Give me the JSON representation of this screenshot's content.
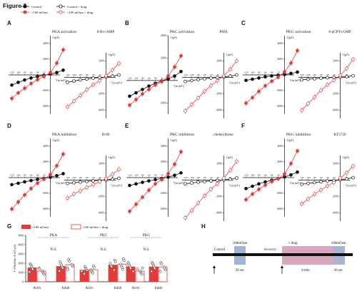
{
  "figure_title": "Figure 2",
  "legend_top": {
    "control": "Control",
    "control_drug": "Control + drug",
    "high": "+100 mOsm",
    "high_drug": "+100 mOsm + drug"
  },
  "colors": {
    "control": "#111111",
    "high": "#e23b3b",
    "bar_fill": "#e23b3b",
    "shade_blue": "#9fb6d6",
    "shade_pink": "#d9a7bd"
  },
  "icon_names": {
    "up_arrow": "up-arrow-icon",
    "open_circle": "open-circle-marker",
    "filled_circle": "filled-circle-marker"
  },
  "panels": [
    {
      "letter": "A",
      "title": "PKA activation",
      "drug": "8-Br-cAMP",
      "right_shows_drug": false,
      "y_label": "I (pA)",
      "x_label": "Vm (mV)",
      "yticks_left": [
        "4000",
        "2000",
        "-2000",
        "-4000"
      ],
      "yticks_right": [
        "2000",
        "-2000",
        "-4000"
      ],
      "xticks": [
        "-120",
        "-100",
        "-80",
        "-60",
        "-40",
        "-20",
        "20"
      ]
    },
    {
      "letter": "B",
      "title": "PKC activation",
      "drug": "PMA",
      "right_shows_drug": true,
      "y_label": "I (pA)",
      "x_label": "Vm (mV)",
      "yticks_left": [
        "4000",
        "2000",
        "-2000"
      ],
      "yticks_right": [
        "2000",
        "-2000",
        "-4000"
      ],
      "xticks": [
        "-120",
        "-100",
        "-80",
        "-60",
        "-40",
        "-20",
        "20"
      ]
    },
    {
      "letter": "C",
      "title": "PKG activation",
      "drug": "8-pCPT-cGMP",
      "right_shows_drug": false,
      "y_label": "I (pA)",
      "x_label": "Vm (mV)",
      "yticks_left": [
        "4000",
        "2000",
        "-2000",
        "-4000"
      ],
      "yticks_right": [
        "2000",
        "-2000",
        "-4000"
      ],
      "xticks": [
        "-120",
        "-100",
        "-80",
        "-60",
        "-40",
        "-20",
        "20"
      ]
    },
    {
      "letter": "D",
      "title": "PKA inhibition",
      "drug": "H-89",
      "right_shows_drug": false,
      "y_label": "I (pA)",
      "x_label": "Vm (mV)",
      "yticks_left": [
        "4000",
        "2000",
        "-2000",
        "-4000"
      ],
      "yticks_right": [
        "2000",
        "-2000",
        "-4000"
      ],
      "xticks": [
        "-120",
        "-100",
        "-80",
        "-60",
        "-40",
        "-20",
        "20"
      ]
    },
    {
      "letter": "E",
      "title": "PKC inhibition",
      "drug": "chelerythrine",
      "right_shows_drug": false,
      "y_label": "I (pA)",
      "x_label": "Vm (mV)",
      "yticks_left": [
        "4000",
        "2000",
        "-2000",
        "-4000"
      ],
      "yticks_right": [
        "2000",
        "-2000",
        "-4000"
      ],
      "xticks": [
        "-120",
        "-100",
        "-80",
        "-60",
        "-40",
        "-20",
        "20"
      ]
    },
    {
      "letter": "F",
      "title": "PKG inhibition",
      "drug": "KT5720",
      "right_shows_drug": false,
      "y_label": "I (pA)",
      "x_label": "Vm (mV)",
      "yticks_left": [
        "4000",
        "2000",
        "-2000",
        "-4000"
      ],
      "yticks_right": [
        "2000",
        "-2000",
        "-4000"
      ],
      "xticks": [
        "-120",
        "-100",
        "-80",
        "-60",
        "-40",
        "-20",
        "20"
      ]
    }
  ],
  "panel_g": {
    "letter": "G",
    "legend": {
      "high": "+100 mOsm",
      "high_drug": "+100 mOsm + drug"
    },
    "groups": [
      "PKA",
      "PKC",
      "PKG"
    ],
    "ns_label": "N.S.",
    "cat_labels": [
      "Activ",
      "Inhib",
      "Activ",
      "Inhib",
      "Activ",
      "Inhib"
    ],
    "ylabel": "I +100mOsm, 30 mV (pA)",
    "yticks": [
      "0",
      "1000",
      "2000",
      "3000",
      "4000",
      "5000"
    ]
  },
  "panel_h": {
    "letter": "H",
    "control": "Control",
    "osm_left": "100mOsm",
    "recovery": "recovery",
    "drug": "+ drug",
    "osm_right": "100mOsm",
    "dur_left": "30 sec",
    "dur_mid": "8 min",
    "dur_right": "30 sec"
  },
  "chart_data": [
    {
      "type": "line",
      "panel": "A",
      "side": "left",
      "title": "PKA activation",
      "xlabel": "Vm (mV)",
      "ylabel": "I (pA)",
      "xlim": [
        -130,
        30
      ],
      "ylim": [
        -5000,
        5000
      ],
      "series": [
        {
          "name": "Control",
          "x": [
            -120,
            -100,
            -80,
            -60,
            -40,
            -20,
            0,
            20,
            40
          ],
          "y": [
            -1300,
            -950,
            -650,
            -400,
            -200,
            -50,
            100,
            300,
            600
          ]
        },
        {
          "name": "+100 mOsm",
          "x": [
            -120,
            -100,
            -80,
            -60,
            -40,
            -20,
            0,
            20,
            40
          ],
          "y": [
            -3000,
            -2300,
            -1700,
            -1100,
            -600,
            -200,
            300,
            1500,
            3200
          ]
        }
      ]
    },
    {
      "type": "line",
      "panel": "A",
      "side": "right",
      "xlabel": "Vm (mV)",
      "ylabel": "I (pA)",
      "xlim": [
        -130,
        30
      ],
      "ylim": [
        -5000,
        3000
      ],
      "series": [
        {
          "name": "Control + drug",
          "x": [
            -120,
            -100,
            -80,
            -60,
            -40,
            -20,
            0,
            20,
            40
          ],
          "y": [
            -600,
            -450,
            -300,
            -200,
            -100,
            -20,
            50,
            150,
            300
          ]
        },
        {
          "name": "+100 mOsm + drug",
          "x": [
            -120,
            -100,
            -80,
            -60,
            -40,
            -20,
            0,
            20,
            40
          ],
          "y": [
            -3600,
            -2900,
            -2200,
            -1500,
            -900,
            -400,
            200,
            900,
            1700
          ]
        }
      ]
    },
    {
      "type": "line",
      "panel": "B",
      "side": "left",
      "title": "PKC activation",
      "xlabel": "Vm (mV)",
      "ylabel": "I (pA)",
      "xlim": [
        -130,
        30
      ],
      "ylim": [
        -3000,
        4000
      ],
      "series": [
        {
          "name": "Control",
          "x": [
            -120,
            -100,
            -80,
            -60,
            -40,
            -20,
            0,
            20,
            40
          ],
          "y": [
            -1400,
            -1100,
            -800,
            -500,
            -250,
            -50,
            150,
            400,
            800
          ]
        },
        {
          "name": "+100 mOsm",
          "x": [
            -120,
            -100,
            -80,
            -60,
            -40,
            -20,
            0,
            20,
            40
          ],
          "y": [
            -2200,
            -1700,
            -1200,
            -800,
            -400,
            -100,
            400,
            1200,
            2200
          ]
        }
      ]
    },
    {
      "type": "line",
      "panel": "B",
      "side": "right",
      "xlabel": "Vm (mV)",
      "ylabel": "I (pA)",
      "xlim": [
        -130,
        30
      ],
      "ylim": [
        -5000,
        3000
      ],
      "series": [
        {
          "name": "Control + drug",
          "x": [
            -120,
            -100,
            -80,
            -60,
            -40,
            -20,
            0,
            20,
            40
          ],
          "y": [
            -500,
            -380,
            -260,
            -160,
            -80,
            -20,
            50,
            150,
            300
          ]
        },
        {
          "name": "+100 mOsm + drug",
          "x": [
            -120,
            -100,
            -80,
            -60,
            -40,
            -20,
            0,
            20,
            40
          ],
          "y": [
            -4100,
            -3300,
            -2500,
            -1700,
            -1000,
            -400,
            200,
            1000,
            2000
          ]
        }
      ]
    },
    {
      "type": "line",
      "panel": "C",
      "side": "left",
      "title": "PKG activation",
      "xlabel": "Vm (mV)",
      "ylabel": "I (pA)",
      "xlim": [
        -130,
        30
      ],
      "ylim": [
        -5000,
        5000
      ],
      "series": [
        {
          "name": "Control",
          "x": [
            -120,
            -100,
            -80,
            -60,
            -40,
            -20,
            0,
            20,
            40
          ],
          "y": [
            -700,
            -550,
            -400,
            -250,
            -130,
            -40,
            50,
            180,
            350
          ]
        },
        {
          "name": "+100 mOsm",
          "x": [
            -120,
            -100,
            -80,
            -60,
            -40,
            -20,
            0,
            20,
            40
          ],
          "y": [
            -3600,
            -2900,
            -2100,
            -1400,
            -800,
            -300,
            400,
            1500,
            3100
          ]
        }
      ]
    },
    {
      "type": "line",
      "panel": "C",
      "side": "right",
      "xlabel": "Vm (mV)",
      "ylabel": "I (pA)",
      "xlim": [
        -130,
        30
      ],
      "ylim": [
        -5000,
        3000
      ],
      "series": [
        {
          "name": "Control + drug",
          "x": [
            -120,
            -100,
            -80,
            -60,
            -40,
            -20,
            0,
            20,
            40
          ],
          "y": [
            -300,
            -230,
            -160,
            -100,
            -50,
            -10,
            40,
            100,
            200
          ]
        },
        {
          "name": "+100 mOsm + drug",
          "x": [
            -120,
            -100,
            -80,
            -60,
            -40,
            -20,
            0,
            20,
            40
          ],
          "y": [
            -4000,
            -3200,
            -2400,
            -1600,
            -900,
            -350,
            250,
            1100,
            2200
          ]
        }
      ]
    },
    {
      "type": "line",
      "panel": "D",
      "side": "left",
      "title": "PKA inhibition",
      "xlabel": "Vm (mV)",
      "ylabel": "I (pA)",
      "xlim": [
        -130,
        30
      ],
      "ylim": [
        -5000,
        5000
      ],
      "series": [
        {
          "name": "Control",
          "x": [
            -120,
            -100,
            -80,
            -60,
            -40,
            -20,
            0,
            20,
            40
          ],
          "y": [
            -900,
            -720,
            -540,
            -380,
            -230,
            -100,
            50,
            250,
            500
          ]
        },
        {
          "name": "+100 mOsm",
          "x": [
            -120,
            -100,
            -80,
            -60,
            -40,
            -20,
            0,
            20,
            40
          ],
          "y": [
            -4000,
            -3100,
            -2200,
            -1400,
            -700,
            -200,
            400,
            1500,
            3000
          ]
        }
      ]
    },
    {
      "type": "line",
      "panel": "D",
      "side": "right",
      "xlabel": "Vm (mV)",
      "ylabel": "I (pA)",
      "xlim": [
        -130,
        30
      ],
      "ylim": [
        -5000,
        3000
      ],
      "series": [
        {
          "name": "Control + drug",
          "x": [
            -120,
            -100,
            -80,
            -60,
            -40,
            -20,
            0,
            20,
            40
          ],
          "y": [
            -400,
            -320,
            -240,
            -160,
            -90,
            -30,
            30,
            110,
            220
          ]
        },
        {
          "name": "+100 mOsm + drug",
          "x": [
            -120,
            -100,
            -80,
            -60,
            -40,
            -20,
            0,
            20,
            40
          ],
          "y": [
            -2200,
            -1700,
            -1300,
            -900,
            -550,
            -200,
            200,
            700,
            1300
          ]
        }
      ]
    },
    {
      "type": "line",
      "panel": "E",
      "side": "left",
      "title": "PKC inhibition",
      "xlabel": "Vm (mV)",
      "ylabel": "I (pA)",
      "xlim": [
        -130,
        30
      ],
      "ylim": [
        -5000,
        5000
      ],
      "series": [
        {
          "name": "Control",
          "x": [
            -120,
            -100,
            -80,
            -60,
            -40,
            -20,
            0,
            20,
            40
          ],
          "y": [
            -1000,
            -800,
            -600,
            -420,
            -260,
            -110,
            60,
            300,
            600
          ]
        },
        {
          "name": "+100 mOsm",
          "x": [
            -120,
            -100,
            -80,
            -60,
            -40,
            -20,
            0,
            20,
            40
          ],
          "y": [
            -4300,
            -3400,
            -2500,
            -1600,
            -800,
            -250,
            500,
            1700,
            3300
          ]
        }
      ]
    },
    {
      "type": "line",
      "panel": "E",
      "side": "right",
      "xlabel": "Vm (mV)",
      "ylabel": "I (pA)",
      "xlim": [
        -130,
        30
      ],
      "ylim": [
        -5000,
        3000
      ],
      "series": [
        {
          "name": "Control + drug",
          "x": [
            -120,
            -100,
            -80,
            -60,
            -40,
            -20,
            0,
            20,
            40
          ],
          "y": [
            -450,
            -350,
            -250,
            -170,
            -90,
            -30,
            30,
            120,
            250
          ]
        },
        {
          "name": "+100 mOsm + drug",
          "x": [
            -120,
            -100,
            -80,
            -60,
            -40,
            -20,
            0,
            20,
            40
          ],
          "y": [
            -4600,
            -3700,
            -2800,
            -1900,
            -1100,
            -450,
            250,
            1200,
            2300
          ]
        }
      ]
    },
    {
      "type": "line",
      "panel": "F",
      "side": "left",
      "title": "PKG inhibition",
      "xlabel": "Vm (mV)",
      "ylabel": "I (pA)",
      "xlim": [
        -130,
        30
      ],
      "ylim": [
        -5000,
        5000
      ],
      "series": [
        {
          "name": "Control",
          "x": [
            -120,
            -100,
            -80,
            -60,
            -40,
            -20,
            0,
            20,
            40
          ],
          "y": [
            -1400,
            -1100,
            -800,
            -550,
            -330,
            -130,
            80,
            350,
            700
          ]
        },
        {
          "name": "+100 mOsm",
          "x": [
            -120,
            -100,
            -80,
            -60,
            -40,
            -20,
            0,
            20,
            40
          ],
          "y": [
            -2800,
            -2100,
            -1500,
            -950,
            -500,
            -150,
            450,
            1800,
            3400
          ]
        }
      ]
    },
    {
      "type": "line",
      "panel": "F",
      "side": "right",
      "xlabel": "Vm (mV)",
      "ylabel": "I (pA)",
      "xlim": [
        -130,
        30
      ],
      "ylim": [
        -5000,
        3000
      ],
      "series": [
        {
          "name": "Control + drug",
          "x": [
            -120,
            -100,
            -80,
            -60,
            -40,
            -20,
            0,
            20,
            40
          ],
          "y": [
            -500,
            -400,
            -300,
            -200,
            -110,
            -40,
            40,
            150,
            300
          ]
        },
        {
          "name": "+100 mOsm + drug",
          "x": [
            -120,
            -100,
            -80,
            -60,
            -40,
            -20,
            0,
            20,
            40
          ],
          "y": [
            -2900,
            -2300,
            -1700,
            -1200,
            -700,
            -300,
            250,
            900,
            1700
          ]
        }
      ]
    },
    {
      "type": "bar",
      "panel": "G",
      "ylabel": "I +100mOsm, 30 mV (pA)",
      "ylim": [
        0,
        5000
      ],
      "categories": [
        "PKA Activ",
        "PKA Inhib",
        "PKC Activ",
        "PKC Inhib",
        "PKG Activ",
        "PKG Inhib"
      ],
      "series": [
        {
          "name": "+100 mOsm",
          "values": [
            1500,
            1650,
            1250,
            1800,
            1600,
            1600
          ]
        },
        {
          "name": "+100 mOsm + drug",
          "values": [
            1150,
            1850,
            1300,
            1900,
            1150,
            1600
          ]
        }
      ]
    }
  ]
}
